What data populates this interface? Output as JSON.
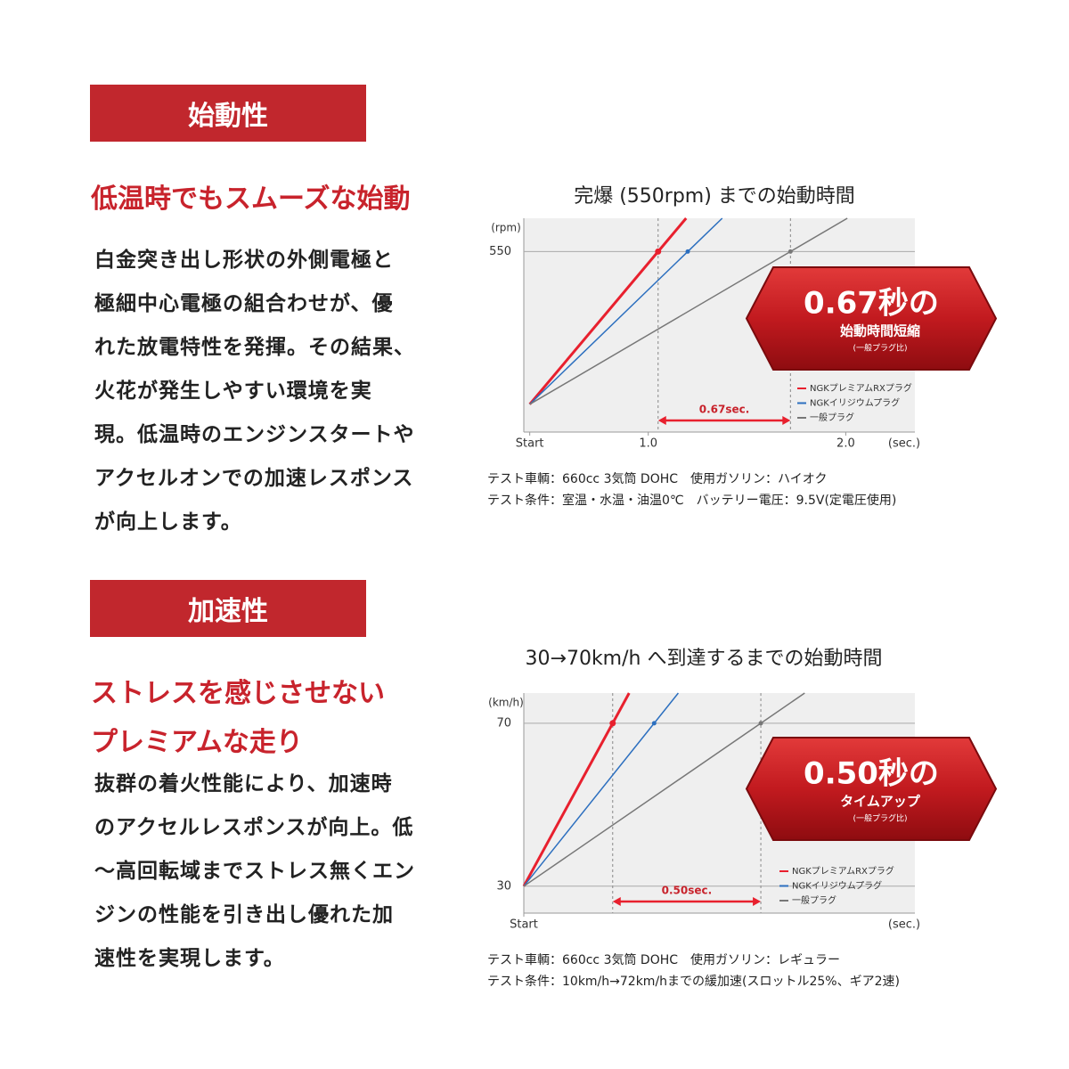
{
  "sections": [
    {
      "header": "始動性",
      "headline": [
        "低温時でもスムーズな始動"
      ],
      "body": [
        "白金突き出し形状の外側電極と",
        "極細中心電極の組合わせが、優",
        "れた放電特性を発揮。その結果、",
        "火花が発生しやすい環境を実",
        "現。低温時のエンジンスタートや",
        "アクセルオンでの加速レスポンス",
        "が向上します。"
      ],
      "notes": [
        "テスト車輌：660cc 3気筒 DOHC　使用ガソリン：ハイオク",
        "テスト条件：室温・水温・油温0℃　バッテリー電圧：9.5V(定電圧使用)"
      ]
    },
    {
      "header": "加速性",
      "headline": [
        "ストレスを感じさせない",
        "プレミアムな走り"
      ],
      "body": [
        "抜群の着火性能により、加速時",
        "のアクセルレスポンスが向上。低",
        "〜高回転域までストレス無くエン",
        "ジンの性能を引き出し優れた加",
        "速性を実現します。"
      ],
      "notes": [
        "テスト車輌：660cc 3気筒 DOHC　使用ガソリン：レギュラー",
        "テスト条件：10km/h→72km/hまでの緩加速(スロットル25%、ギア2速)"
      ]
    }
  ],
  "chart_data": [
    {
      "type": "line",
      "title": "完爆 (550rpm) までの始動時間",
      "ylabel": "(rpm)",
      "xlabel": "(sec.)",
      "xlim": [
        0.37,
        2.35
      ],
      "ylim": [
        -100,
        670
      ],
      "xticks": [
        {
          "value": 0.4,
          "label": "Start"
        },
        {
          "value": 1,
          "label": "1.0"
        },
        {
          "value": 2,
          "label": "2.0"
        }
      ],
      "yticks": [
        550
      ],
      "series": [
        {
          "name": "NGKプレミアムRXプラグ",
          "color": "#e8202e",
          "x": [
            0.4,
            1.05
          ],
          "values": [
            0,
            550
          ]
        },
        {
          "name": "NGKイリジウムプラグ",
          "color": "#2c6fbf",
          "x": [
            0.4,
            1.2
          ],
          "values": [
            0,
            550
          ]
        },
        {
          "name": "一般プラグ",
          "color": "#777777",
          "x": [
            0.4,
            1.72
          ],
          "values": [
            0,
            550
          ]
        }
      ],
      "annotation": "0.67sec.",
      "badge": [
        "0.67秒の",
        "始動時間短縮",
        "(一般プラグ比)"
      ]
    },
    {
      "type": "line",
      "title": "30→70km/h へ到達するまでの始動時間",
      "ylabel": "(km/h)",
      "xlabel": "(sec.)",
      "xlim": [
        0,
        1.32
      ],
      "ylim": [
        23.4,
        77.4
      ],
      "xticks": [
        {
          "value": 0,
          "label": "Start"
        }
      ],
      "yticks": [
        30,
        70
      ],
      "series": [
        {
          "name": "NGKプレミアムRXプラグ",
          "color": "#e8202e",
          "x": [
            0,
            0.3
          ],
          "values": [
            30,
            70
          ]
        },
        {
          "name": "NGKイリジウムプラグ",
          "color": "#2c6fbf",
          "x": [
            0,
            0.44
          ],
          "values": [
            30,
            70
          ]
        },
        {
          "name": "一般プラグ",
          "color": "#777777",
          "x": [
            0,
            0.8
          ],
          "values": [
            30,
            70
          ]
        }
      ],
      "annotation": "0.50sec.",
      "badge": [
        "0.50秒の",
        "タイムアップ",
        "(一般プラグ比)"
      ]
    }
  ]
}
